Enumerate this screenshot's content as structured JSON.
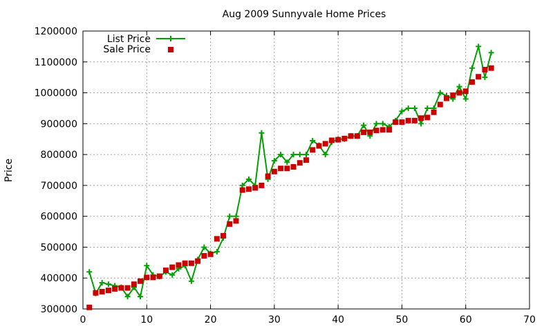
{
  "chart_data": {
    "type": "line",
    "title": "Aug 2009 Sunnyvale Home Prices",
    "xlabel": "",
    "ylabel": "Price",
    "xlim": [
      0,
      70
    ],
    "ylim": [
      300000,
      1200000
    ],
    "xticks": [
      0,
      10,
      20,
      30,
      40,
      50,
      60,
      70
    ],
    "yticks": [
      300000,
      400000,
      500000,
      600000,
      700000,
      800000,
      900000,
      1000000,
      1100000,
      1200000
    ],
    "grid": true,
    "legend_position": "top-left",
    "series": [
      {
        "name": "List Price",
        "style": "lines-with-plus-markers",
        "color": "#00a000",
        "x": [
          1,
          2,
          3,
          4,
          5,
          6,
          7,
          8,
          9,
          10,
          11,
          12,
          13,
          14,
          15,
          16,
          17,
          18,
          19,
          20,
          21,
          22,
          23,
          24,
          25,
          26,
          27,
          28,
          29,
          30,
          31,
          32,
          33,
          34,
          35,
          36,
          37,
          38,
          39,
          40,
          41,
          42,
          43,
          44,
          45,
          46,
          47,
          48,
          49,
          50,
          51,
          52,
          53,
          54,
          55,
          56,
          57,
          58,
          59,
          60,
          61,
          62,
          63,
          64
        ],
        "y": [
          420000,
          350000,
          385000,
          380000,
          375000,
          370000,
          340000,
          370000,
          340000,
          440000,
          410000,
          405000,
          420000,
          410000,
          430000,
          440000,
          390000,
          460000,
          500000,
          480000,
          485000,
          530000,
          600000,
          600000,
          700000,
          720000,
          700000,
          870000,
          720000,
          780000,
          800000,
          775000,
          800000,
          800000,
          800000,
          845000,
          830000,
          800000,
          840000,
          850000,
          850000,
          860000,
          860000,
          895000,
          860000,
          900000,
          900000,
          890000,
          910000,
          940000,
          950000,
          950000,
          900000,
          950000,
          950000,
          1000000,
          990000,
          980000,
          1020000,
          980000,
          1080000,
          1150000,
          1050000,
          1130000
        ]
      },
      {
        "name": "Sale Price",
        "style": "filled-square-points",
        "color": "#cc0000",
        "x": [
          1,
          2,
          3,
          4,
          5,
          6,
          7,
          8,
          9,
          10,
          11,
          12,
          13,
          14,
          15,
          16,
          17,
          18,
          19,
          20,
          21,
          22,
          23,
          24,
          25,
          26,
          27,
          28,
          29,
          30,
          31,
          32,
          33,
          34,
          35,
          36,
          37,
          38,
          39,
          40,
          41,
          42,
          43,
          44,
          45,
          46,
          47,
          48,
          49,
          50,
          51,
          52,
          53,
          54,
          55,
          56,
          57,
          58,
          59,
          60,
          61,
          62,
          63,
          64
        ],
        "y": [
          305000,
          352000,
          356000,
          360000,
          365000,
          368000,
          368000,
          380000,
          390000,
          402000,
          402000,
          406000,
          425000,
          435000,
          442000,
          448000,
          448000,
          455000,
          472000,
          477000,
          527000,
          537000,
          575000,
          585000,
          685000,
          688000,
          692000,
          700000,
          730000,
          745000,
          755000,
          755000,
          760000,
          773000,
          782000,
          815000,
          828000,
          835000,
          846000,
          848000,
          852000,
          860000,
          860000,
          872000,
          872000,
          878000,
          880000,
          880000,
          905000,
          905000,
          910000,
          910000,
          918000,
          920000,
          937000,
          962000,
          982000,
          992000,
          1000000,
          1005000,
          1035000,
          1052000,
          1075000,
          1080000
        ]
      }
    ]
  }
}
